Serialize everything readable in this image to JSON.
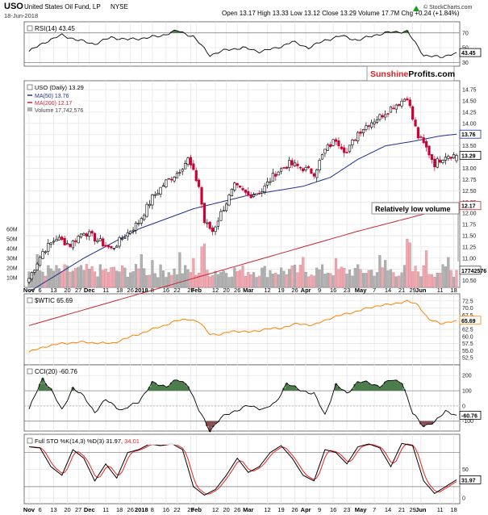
{
  "header": {
    "symbol": "USO",
    "name": "United States Oil Fund, LP",
    "exchange": "NYSE",
    "date": "18-Jun-2018",
    "ohlc_text": "Open 13.17  High 13.33  Low 13.12  Close 13.29  Volume 17.7M  Chg +0.24 (+1.84%)",
    "trend_icon": "up-triangle",
    "copyright": "© StockCharts.com",
    "watermark_part1": "Sunshine",
    "watermark_part2": "Profits.com",
    "watermark_color1": "#e02020",
    "watermark_color2": "#000000"
  },
  "annotation": {
    "text": "Relatively low volume"
  },
  "x_labels": [
    {
      "label": "Nov",
      "bold": true,
      "i": 0
    },
    {
      "label": "6",
      "bold": false,
      "i": 4
    },
    {
      "label": "13",
      "bold": false,
      "i": 9
    },
    {
      "label": "20",
      "bold": false,
      "i": 14
    },
    {
      "label": "27",
      "bold": false,
      "i": 18
    },
    {
      "label": "Dec",
      "bold": true,
      "i": 22
    },
    {
      "label": "11",
      "bold": false,
      "i": 28
    },
    {
      "label": "18",
      "bold": false,
      "i": 33
    },
    {
      "label": "26",
      "bold": false,
      "i": 37
    },
    {
      "label": "2018",
      "bold": true,
      "i": 41
    },
    {
      "label": "8",
      "bold": false,
      "i": 45
    },
    {
      "label": "16",
      "bold": false,
      "i": 50
    },
    {
      "label": "22",
      "bold": false,
      "i": 54
    },
    {
      "label": "29",
      "bold": false,
      "i": 59
    },
    {
      "label": "Feb",
      "bold": true,
      "i": 61
    },
    {
      "label": "12",
      "bold": false,
      "i": 68
    },
    {
      "label": "20",
      "bold": false,
      "i": 72
    },
    {
      "label": "26",
      "bold": false,
      "i": 76
    },
    {
      "label": "Mar",
      "bold": true,
      "i": 80
    },
    {
      "label": "12",
      "bold": false,
      "i": 87
    },
    {
      "label": "19",
      "bold": false,
      "i": 92
    },
    {
      "label": "26",
      "bold": false,
      "i": 97
    },
    {
      "label": "Apr",
      "bold": true,
      "i": 101
    },
    {
      "label": "9",
      "bold": false,
      "i": 106
    },
    {
      "label": "16",
      "bold": false,
      "i": 111
    },
    {
      "label": "23",
      "bold": false,
      "i": 116
    },
    {
      "label": "May",
      "bold": true,
      "i": 121
    },
    {
      "label": "7",
      "bold": false,
      "i": 126
    },
    {
      "label": "14",
      "bold": false,
      "i": 131
    },
    {
      "label": "21",
      "bold": false,
      "i": 136
    },
    {
      "label": "29",
      "bold": false,
      "i": 140
    },
    {
      "label": "Jun",
      "bold": true,
      "i": 143
    },
    {
      "label": "11",
      "bold": false,
      "i": 150
    },
    {
      "label": "18",
      "bold": false,
      "i": 155
    }
  ],
  "chart_data": [
    {
      "type": "line",
      "panel": "RSI",
      "legend": "RSI(14) 43.45",
      "ylim": [
        25,
        85
      ],
      "y_ticks": [
        30,
        50,
        70
      ],
      "last_value_label": "43.45",
      "line_color": "#000000",
      "fill_color": "#4d7d4d",
      "thresholds": [
        30,
        70
      ],
      "key_x": [
        0,
        6,
        12,
        18,
        24,
        30,
        36,
        42,
        48,
        54,
        60,
        66,
        72,
        78,
        84,
        90,
        96,
        102,
        108,
        114,
        120,
        126,
        132,
        138,
        144,
        150,
        156
      ],
      "key_y": [
        45,
        58,
        67,
        60,
        55,
        64,
        61,
        63,
        66,
        73,
        65,
        40,
        47,
        50,
        45,
        49,
        58,
        50,
        60,
        66,
        60,
        67,
        71,
        72,
        40,
        37,
        43.45
      ]
    },
    {
      "type": "candlestick",
      "panel": "Price",
      "legend": [
        "USO (Daily) 13.29",
        "MA(50) 13.76",
        "MA(200) 12.17",
        "Volume 17,742,576"
      ],
      "ylim": [
        10.35,
        14.95
      ],
      "y_ticks": [
        10.5,
        10.75,
        11.0,
        11.25,
        11.5,
        11.75,
        12.0,
        12.25,
        12.5,
        12.75,
        13.0,
        13.25,
        13.5,
        13.75,
        14.0,
        14.25,
        14.5,
        14.75
      ],
      "up_color": "#000000",
      "down_color": "#cc0033",
      "ma50": {
        "name": "MA(50)",
        "value": 13.76,
        "color": "#1f2f8f",
        "key_x": [
          0,
          20,
          40,
          60,
          80,
          100,
          110,
          120,
          130,
          140,
          150,
          156
        ],
        "key_y": [
          10.25,
          11.0,
          11.65,
          12.1,
          12.4,
          12.6,
          12.8,
          13.2,
          13.5,
          13.6,
          13.72,
          13.76
        ]
      },
      "ma200": {
        "name": "MA(200)",
        "value": 12.17,
        "color": "#cc2233",
        "key_x": [
          0,
          40,
          80,
          120,
          156
        ],
        "key_y": [
          9.5,
          10.2,
          10.9,
          11.6,
          12.17
        ]
      },
      "close_key_x": [
        0,
        5,
        10,
        15,
        20,
        25,
        30,
        35,
        40,
        45,
        50,
        54,
        58,
        62,
        64,
        67,
        70,
        75,
        80,
        85,
        90,
        95,
        100,
        104,
        108,
        112,
        116,
        120,
        124,
        128,
        132,
        136,
        138,
        140,
        142,
        145,
        148,
        152,
        156
      ],
      "close_key_y": [
        10.55,
        11.15,
        11.45,
        11.3,
        11.6,
        11.4,
        11.2,
        11.5,
        11.8,
        12.35,
        12.7,
        12.9,
        13.2,
        12.6,
        11.8,
        11.6,
        12.0,
        12.6,
        12.4,
        12.5,
        12.9,
        13.1,
        13.0,
        12.9,
        13.4,
        13.65,
        13.35,
        13.8,
        14.0,
        14.15,
        14.35,
        14.5,
        14.6,
        14.1,
        13.7,
        13.45,
        13.1,
        13.3,
        13.29
      ],
      "last": {
        "open": 13.17,
        "high": 13.33,
        "low": 13.12,
        "close": 13.29,
        "volume": "17.7M"
      },
      "labels": {
        "close": "13.29",
        "ma50": "13.76",
        "ma200": "12.17",
        "volume": "17742576"
      }
    },
    {
      "type": "bar",
      "panel": "Volume",
      "ylim": [
        0,
        70
      ],
      "unit": "M",
      "y_ticks": [
        10,
        20,
        30,
        40,
        50,
        60
      ],
      "y_tick_labels": [
        "10M",
        "20M",
        "30M",
        "40M",
        "50M",
        "60M"
      ],
      "up_color": "#b0b0b0",
      "down_color": "#f0a8b0",
      "spike_indices": [
        3,
        41,
        45,
        55,
        60,
        63,
        64,
        100,
        112,
        128,
        130,
        138,
        139,
        145,
        153
      ],
      "spike_values": [
        34,
        34,
        28,
        36,
        30,
        42,
        45,
        31,
        30,
        33,
        28,
        50,
        46,
        38,
        31
      ],
      "last_value": 17.7
    },
    {
      "type": "line",
      "panel": "$WTIC",
      "legend": "$WTIC 65.69",
      "ylim": [
        50,
        75
      ],
      "y_ticks": [
        52.5,
        55.0,
        57.5,
        60.0,
        62.5,
        65.0,
        67.5,
        70.0,
        72.5
      ],
      "last_value_label": "65.69",
      "line_color": "#ff8000",
      "key_x": [
        0,
        6,
        12,
        18,
        24,
        30,
        36,
        42,
        48,
        54,
        58,
        62,
        66,
        70,
        74,
        80,
        86,
        92,
        98,
        104,
        110,
        116,
        122,
        128,
        132,
        138,
        142,
        146,
        150,
        156
      ],
      "key_y": [
        54.5,
        56.5,
        57.5,
        58.0,
        57.8,
        57.5,
        59.5,
        61.5,
        63.5,
        65.5,
        66.2,
        65.0,
        61.0,
        60.5,
        62.0,
        61.5,
        62.5,
        63.0,
        64.5,
        64.0,
        66.5,
        68.0,
        69.5,
        71.0,
        71.2,
        72.5,
        71.0,
        66.0,
        64.5,
        65.69
      ]
    },
    {
      "type": "line",
      "panel": "CCI",
      "legend": "CCI(20) -60.76",
      "ylim": [
        -165,
        270
      ],
      "y_ticks": [
        -100,
        0,
        100,
        200
      ],
      "last_value_label": "-60.76",
      "line_color": "#000000",
      "pos_fill": "#4d7d4d",
      "neg_fill": "#8a5050",
      "thresholds": [
        -100,
        100
      ],
      "key_x": [
        0,
        5,
        8,
        12,
        16,
        20,
        24,
        28,
        34,
        40,
        45,
        50,
        54,
        58,
        62,
        66,
        70,
        74,
        80,
        86,
        90,
        94,
        98,
        104,
        108,
        112,
        116,
        120,
        124,
        128,
        132,
        136,
        140,
        144,
        148,
        152,
        156
      ],
      "key_y": [
        -20,
        180,
        110,
        -30,
        120,
        60,
        -40,
        40,
        -30,
        30,
        150,
        130,
        170,
        140,
        -30,
        -160,
        -80,
        -40,
        0,
        -20,
        20,
        150,
        110,
        80,
        -60,
        140,
        80,
        160,
        150,
        130,
        170,
        160,
        -50,
        -130,
        -110,
        -30,
        -60.76
      ]
    },
    {
      "type": "line",
      "panel": "Full STO",
      "legend": [
        "Full STO %K(14,3) %D(3) 31.97,",
        " 34.01"
      ],
      "ylim": [
        -10,
        112
      ],
      "y_ticks": [
        0,
        50
      ],
      "last_value_label": "31.97",
      "thresholds": [
        20,
        80
      ],
      "k_color": "#000000",
      "d_color": "#ee2020",
      "key_x": [
        0,
        4,
        8,
        12,
        16,
        20,
        24,
        28,
        32,
        36,
        40,
        44,
        48,
        52,
        56,
        60,
        64,
        68,
        72,
        76,
        80,
        84,
        88,
        92,
        96,
        100,
        104,
        108,
        112,
        116,
        120,
        124,
        128,
        132,
        136,
        140,
        144,
        148,
        152,
        156
      ],
      "k_key_y": [
        90,
        88,
        55,
        40,
        85,
        70,
        30,
        60,
        35,
        80,
        85,
        95,
        92,
        96,
        85,
        20,
        5,
        15,
        40,
        70,
        45,
        55,
        80,
        92,
        70,
        40,
        30,
        85,
        80,
        60,
        90,
        95,
        88,
        55,
        96,
        92,
        30,
        8,
        20,
        31.97
      ],
      "d_offset": 1.5
    }
  ]
}
